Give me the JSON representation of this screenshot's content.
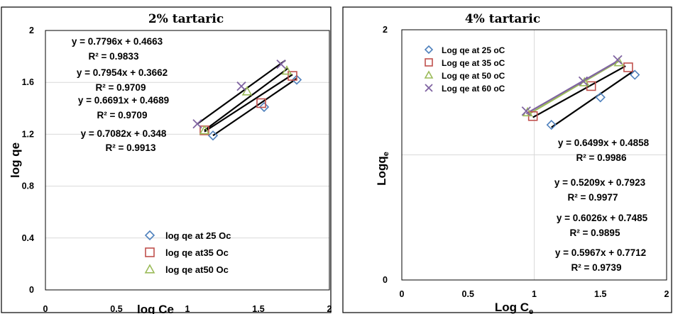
{
  "colors": {
    "s25": "#4F81BD",
    "s35": "#C0504D",
    "s50": "#9BBB59",
    "s60": "#8064A2",
    "fit": "#000000",
    "grid": "#D9D9D9",
    "frame": "#000000"
  },
  "chart_data": [
    {
      "type": "scatter",
      "title": "2% tartaric",
      "xlabel": "log Ce",
      "ylabel": "log qe",
      "xlim": [
        0,
        2
      ],
      "ylim": [
        0,
        2
      ],
      "xticks": [
        "0",
        "0.5",
        "1",
        "1.5",
        "2"
      ],
      "yticks": [
        "0",
        "0.4",
        "0.8",
        "1.2",
        "1.6",
        "2"
      ],
      "grid": "horizontal",
      "legend_position": "bottom-right",
      "legend": [
        "log qe at 25 Oc",
        "log qe at35 Oc",
        "log qe at50 Oc"
      ],
      "series": [
        {
          "name": "log qe at 25 Oc",
          "marker": "diamond",
          "color": "#4F81BD",
          "points": [
            [
              1.18,
              1.19
            ],
            [
              1.54,
              1.41
            ],
            [
              1.77,
              1.62
            ]
          ]
        },
        {
          "name": "log qe at35 Oc",
          "marker": "square",
          "color": "#C0504D",
          "points": [
            [
              1.12,
              1.23
            ],
            [
              1.52,
              1.44
            ],
            [
              1.74,
              1.65
            ]
          ]
        },
        {
          "name": "log qe at50 Oc",
          "marker": "triangle",
          "color": "#9BBB59",
          "points": [
            [
              1.12,
              1.23
            ],
            [
              1.42,
              1.53
            ],
            [
              1.7,
              1.69
            ]
          ]
        },
        {
          "name": "",
          "marker": "x",
          "color": "#8064A2",
          "points": [
            [
              1.07,
              1.28
            ],
            [
              1.38,
              1.57
            ],
            [
              1.66,
              1.74
            ]
          ]
        }
      ],
      "fit_lines": [
        [
          [
            1.18,
            1.19
          ],
          [
            1.77,
            1.63
          ]
        ],
        [
          [
            1.12,
            1.22
          ],
          [
            1.74,
            1.66
          ]
        ],
        [
          [
            1.12,
            1.23
          ],
          [
            1.71,
            1.71
          ]
        ],
        [
          [
            1.07,
            1.28
          ],
          [
            1.69,
            1.77
          ]
        ]
      ],
      "equations": [
        {
          "eq": "y = 0.7796x + 0.4663",
          "r2": "R² = 0.9833"
        },
        {
          "eq": "y = 0.7954x + 0.3662",
          "r2": "R² = 0.9709"
        },
        {
          "eq": "y = 0.6691x + 0.4689",
          "r2": "R² = 0.9709"
        },
        {
          "eq": "y = 0.7082x + 0.348",
          "r2": "R² = 0.9913"
        }
      ]
    },
    {
      "type": "scatter",
      "title": "4% tartaric",
      "xlabel": "Log C",
      "xlabel_sub": "e",
      "ylabel": "Logq",
      "ylabel_sub": "e",
      "xlim": [
        0,
        2
      ],
      "ylim": [
        0,
        2
      ],
      "xticks": [
        "0",
        "0.5",
        "1",
        "1.5",
        "2"
      ],
      "yticks": [
        "0",
        "2"
      ],
      "grid": "mid-cross",
      "legend_position": "top-left",
      "legend": [
        "Log qe at 25 oC",
        "Log qe at 35 oC",
        "Log qe at 50 oC",
        "Log qe at 60 oC"
      ],
      "series": [
        {
          "name": "Log qe at 25 oC",
          "marker": "diamond",
          "color": "#4F81BD",
          "points": [
            [
              1.13,
              1.24
            ],
            [
              1.5,
              1.46
            ],
            [
              1.76,
              1.64
            ]
          ]
        },
        {
          "name": "Log qe at 35 oC",
          "marker": "square",
          "color": "#C0504D",
          "points": [
            [
              0.99,
              1.31
            ],
            [
              1.43,
              1.55
            ],
            [
              1.71,
              1.7
            ]
          ]
        },
        {
          "name": "Log qe at 50 oC",
          "marker": "triangle",
          "color": "#9BBB59",
          "points": [
            [
              0.95,
              1.34
            ],
            [
              1.38,
              1.58
            ],
            [
              1.64,
              1.74
            ]
          ]
        },
        {
          "name": "Log qe at 60 oC",
          "marker": "x",
          "color": "#8064A2",
          "points": [
            [
              0.94,
              1.35
            ],
            [
              1.37,
              1.59
            ],
            [
              1.63,
              1.76
            ]
          ]
        }
      ],
      "fit_lines": [
        [
          [
            1.13,
            1.22
          ],
          [
            1.75,
            1.67
          ]
        ],
        [
          [
            0.99,
            1.3
          ],
          [
            1.69,
            1.71
          ]
        ],
        [
          [
            0.95,
            1.32
          ],
          [
            1.64,
            1.75
          ]
        ],
        [
          [
            0.94,
            1.33
          ],
          [
            1.63,
            1.75
          ]
        ]
      ],
      "fit_colors": [
        "#000000",
        "#000000",
        "#9BBB59",
        "#8064A2"
      ],
      "equations": [
        {
          "eq": "y = 0.6499x + 0.4858",
          "r2": "R² = 0.9986"
        },
        {
          "eq": "y = 0.5209x + 0.7923",
          "r2": "R² = 0.9977"
        },
        {
          "eq": "y = 0.6026x + 0.7485",
          "r2": "R² = 0.9895"
        },
        {
          "eq": "y = 0.5967x + 0.7712",
          "r2": "R² = 0.9739"
        }
      ]
    }
  ]
}
